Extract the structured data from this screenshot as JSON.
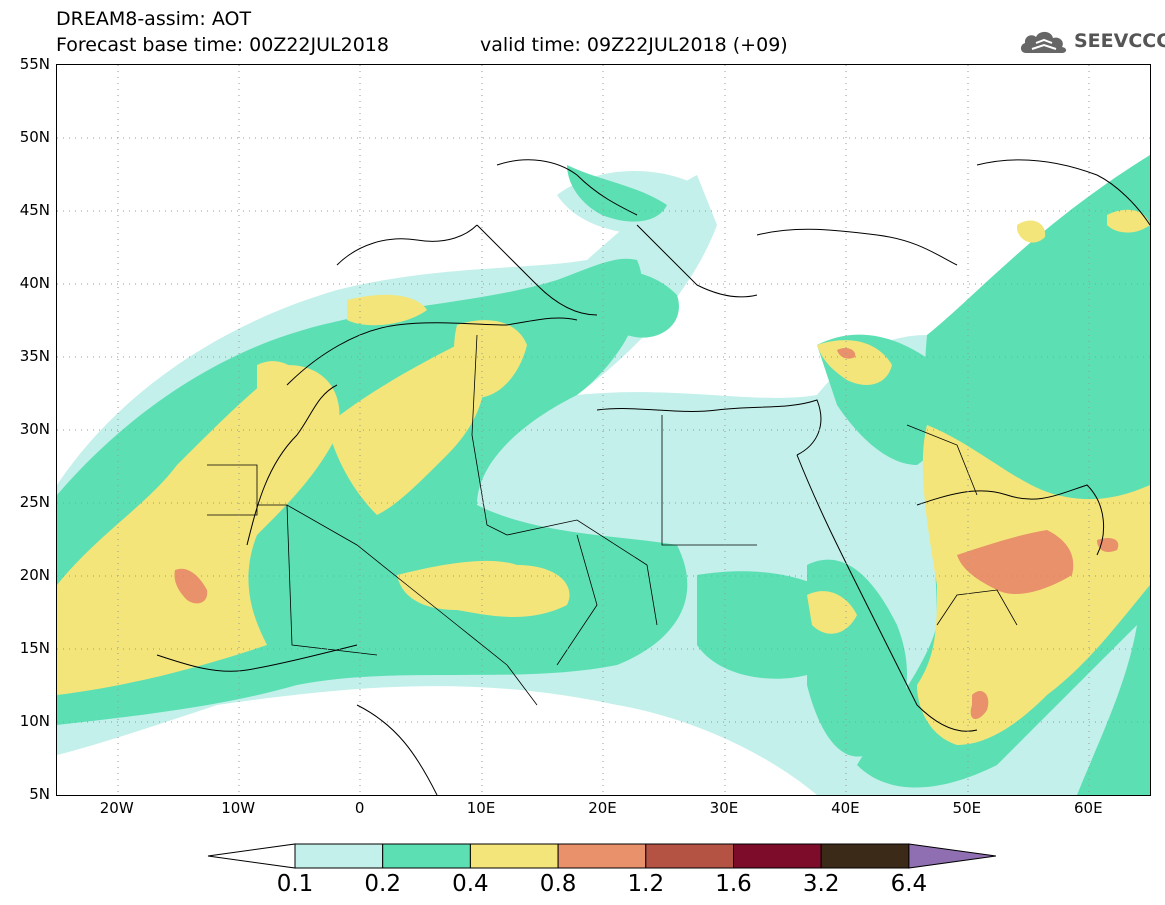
{
  "header": {
    "line1": "DREAM8-assim: AOT",
    "line2": "Forecast base time: 00Z22JUL2018",
    "valid": "valid time: 09Z22JUL2018 (+09)"
  },
  "logo": {
    "text": "SEEVCCC",
    "icon": "cloud-icon"
  },
  "map": {
    "lat_labels": [
      "55N",
      "50N",
      "45N",
      "40N",
      "35N",
      "30N",
      "25N",
      "20N",
      "15N",
      "10N",
      "5N"
    ],
    "lon_labels": [
      "20W",
      "10W",
      "0",
      "10E",
      "20E",
      "30E",
      "40E",
      "50E",
      "60E"
    ],
    "lon_range": [
      -25,
      65
    ],
    "lat_range": [
      5,
      55
    ]
  },
  "colorbar": {
    "levels": [
      "0.1",
      "0.2",
      "0.4",
      "0.8",
      "1.2",
      "1.6",
      "3.2",
      "6.4"
    ],
    "colors": [
      "#c3f0ea",
      "#5ddfb4",
      "#f4e57a",
      "#e8916a",
      "#b45244",
      "#7d0c2a",
      "#3c2a18",
      "#8f6fb2"
    ]
  }
}
